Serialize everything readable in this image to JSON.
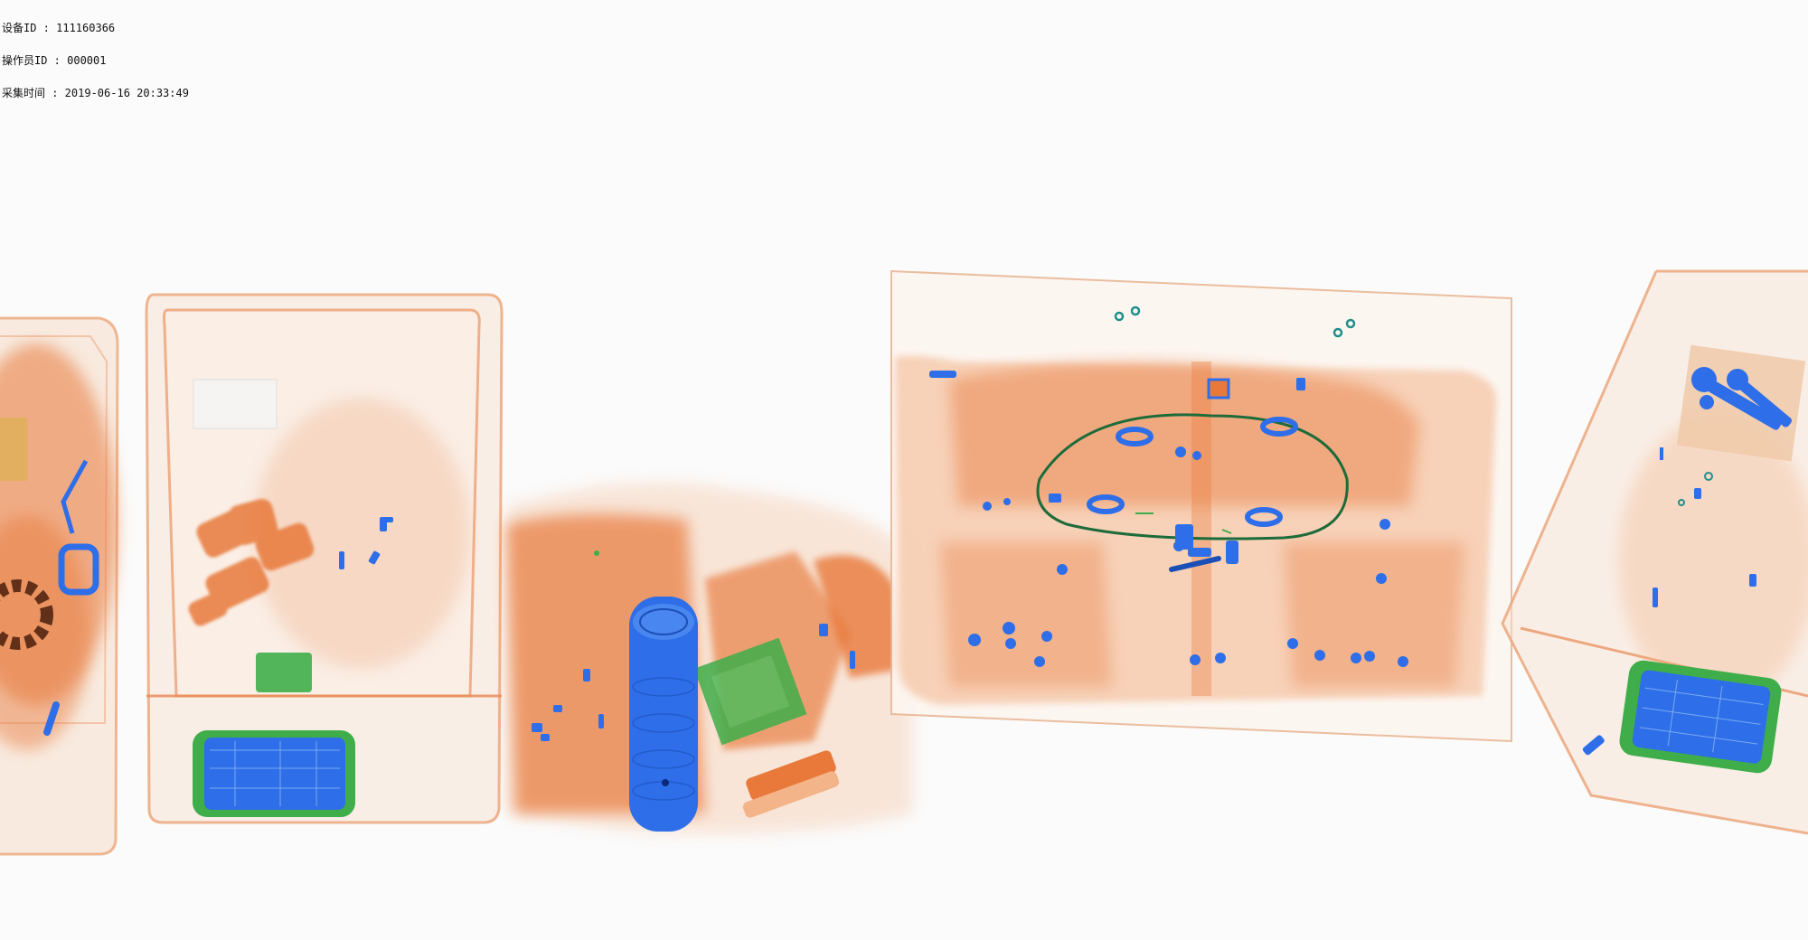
{
  "overlay": {
    "device_id_label": "设备ID : 111160366",
    "operator_id_label": "操作员ID : 000001",
    "capture_time_label": "采集时间 : 2019-06-16 20:33:49"
  },
  "colors": {
    "background": "#fbfbfb",
    "organic": "#e8793a",
    "organic_light": "#f3b48a",
    "inorganic": "#2e6ee8",
    "mixed": "#3fae4a",
    "edge": "#f0c9a8"
  }
}
